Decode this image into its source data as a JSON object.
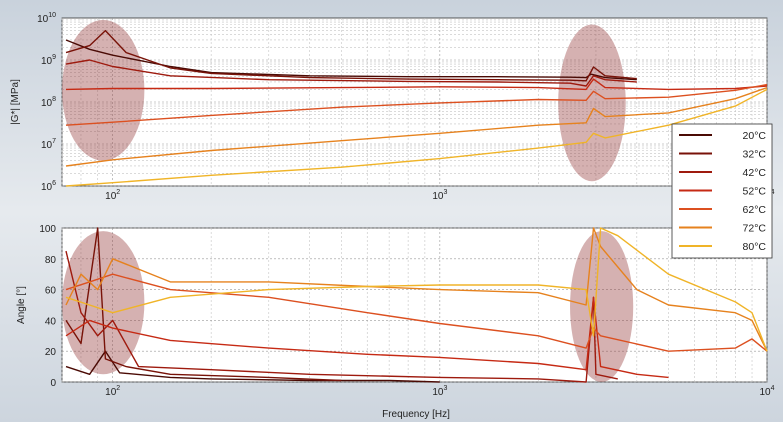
{
  "chart_data": [
    {
      "type": "line",
      "panel": "top",
      "ylabel": "|G*| [MPa]",
      "xlabel": "",
      "x_scale": "log",
      "y_scale": "log",
      "xlim": [
        70,
        10000
      ],
      "ylim": [
        1000000,
        10000000000
      ],
      "grid": true,
      "x_ticks": [
        {
          "value": 100,
          "base": "10",
          "exp": "2"
        },
        {
          "value": 1000,
          "base": "10",
          "exp": "3"
        },
        {
          "value": 10000,
          "base": "10",
          "exp": "4"
        }
      ],
      "y_ticks": [
        {
          "value": 1000000,
          "base": "10",
          "exp": "6"
        },
        {
          "value": 10000000,
          "base": "10",
          "exp": "7"
        },
        {
          "value": 100000000,
          "base": "10",
          "exp": "8"
        },
        {
          "value": 1000000000,
          "base": "10",
          "exp": "9"
        },
        {
          "value": 10000000000,
          "base": "10",
          "exp": "10"
        }
      ],
      "highlight_regions": [
        {
          "x_range": [
            70,
            125
          ],
          "y_range": [
            4000000,
            9000000000
          ]
        },
        {
          "x_range": [
            2300,
            3700
          ],
          "y_range": [
            1300000,
            7000000000
          ]
        }
      ],
      "series": [
        {
          "name": "20°C",
          "color": "#4a0a04",
          "points": [
            [
              72,
              3000000000
            ],
            [
              85,
              1800000000
            ],
            [
              100,
              1300000000
            ],
            [
              150,
              700000000
            ],
            [
              200,
              500000000
            ],
            [
              400,
              420000000
            ],
            [
              800,
              400000000
            ],
            [
              1500,
              400000000
            ],
            [
              2500,
              390000000
            ],
            [
              2800,
              380000000
            ],
            [
              2900,
              460000000
            ],
            [
              3200,
              380000000
            ],
            [
              4000,
              340000000
            ]
          ]
        },
        {
          "name": "32°C",
          "color": "#781208",
          "points": [
            [
              72,
              1500000000
            ],
            [
              85,
              2200000000
            ],
            [
              95,
              5000000000
            ],
            [
              110,
              1500000000
            ],
            [
              150,
              650000000
            ],
            [
              200,
              480000000
            ],
            [
              400,
              380000000
            ],
            [
              800,
              350000000
            ],
            [
              1500,
              340000000
            ],
            [
              2500,
              330000000
            ],
            [
              2800,
              320000000
            ],
            [
              2950,
              680000000
            ],
            [
              3200,
              420000000
            ],
            [
              4000,
              360000000
            ]
          ]
        },
        {
          "name": "42°C",
          "color": "#9e1a0e",
          "points": [
            [
              72,
              800000000
            ],
            [
              85,
              1000000000
            ],
            [
              100,
              700000000
            ],
            [
              150,
              420000000
            ],
            [
              300,
              340000000
            ],
            [
              800,
              310000000
            ],
            [
              1500,
              300000000
            ],
            [
              2500,
              280000000
            ],
            [
              2800,
              240000000
            ],
            [
              2950,
              420000000
            ],
            [
              3200,
              340000000
            ],
            [
              4000,
              300000000
            ]
          ]
        },
        {
          "name": "52°C",
          "color": "#c62a14",
          "points": [
            [
              72,
              200000000
            ],
            [
              100,
              210000000
            ],
            [
              200,
              210000000
            ],
            [
              500,
              220000000
            ],
            [
              1000,
              230000000
            ],
            [
              2000,
              220000000
            ],
            [
              2800,
              200000000
            ],
            [
              2950,
              350000000
            ],
            [
              3200,
              220000000
            ],
            [
              5000,
              200000000
            ],
            [
              8000,
              210000000
            ],
            [
              10000,
              240000000
            ]
          ]
        },
        {
          "name": "62°C",
          "color": "#dc5020",
          "points": [
            [
              72,
              28000000
            ],
            [
              100,
              33000000
            ],
            [
              200,
              48000000
            ],
            [
              500,
              75000000
            ],
            [
              1000,
              95000000
            ],
            [
              2000,
              115000000
            ],
            [
              2800,
              110000000
            ],
            [
              2950,
              180000000
            ],
            [
              3200,
              120000000
            ],
            [
              5000,
              130000000
            ],
            [
              8000,
              190000000
            ],
            [
              10000,
              260000000
            ]
          ]
        },
        {
          "name": "72°C",
          "color": "#e6821e",
          "points": [
            [
              72,
              3000000
            ],
            [
              100,
              4200000
            ],
            [
              200,
              7000000
            ],
            [
              500,
              12000000
            ],
            [
              1000,
              18000000
            ],
            [
              2000,
              28000000
            ],
            [
              2800,
              32000000
            ],
            [
              2950,
              70000000
            ],
            [
              3200,
              45000000
            ],
            [
              5000,
              55000000
            ],
            [
              8000,
              120000000
            ],
            [
              10000,
              220000000
            ]
          ]
        },
        {
          "name": "80°C",
          "color": "#f0b428",
          "points": [
            [
              72,
              1000000
            ],
            [
              100,
              1200000
            ],
            [
              200,
              1800000
            ],
            [
              500,
              2800000
            ],
            [
              1000,
              4500000
            ],
            [
              2000,
              8000000
            ],
            [
              2800,
              11000000
            ],
            [
              2950,
              18000000
            ],
            [
              3200,
              14000000
            ],
            [
              5000,
              28000000
            ],
            [
              8000,
              80000000
            ],
            [
              10000,
              200000000
            ]
          ]
        }
      ]
    },
    {
      "type": "line",
      "panel": "bottom",
      "ylabel": "Angle [°]",
      "xlabel": "Frequency [Hz]",
      "x_scale": "log",
      "y_scale": "linear",
      "xlim": [
        70,
        10000
      ],
      "ylim": [
        0,
        100
      ],
      "grid": true,
      "x_ticks": [
        {
          "value": 100,
          "base": "10",
          "exp": "2"
        },
        {
          "value": 1000,
          "base": "10",
          "exp": "3"
        },
        {
          "value": 10000,
          "base": "10",
          "exp": "4"
        }
      ],
      "y_ticks": [
        0,
        20,
        40,
        60,
        80,
        100
      ],
      "legend": {
        "position": "right",
        "entries": [
          "20°C",
          "32°C",
          "42°C",
          "52°C",
          "62°C",
          "72°C",
          "80°C"
        ]
      },
      "highlight_regions": [
        {
          "x_range": [
            70,
            125
          ],
          "y_range": [
            5,
            98
          ]
        },
        {
          "x_range": [
            2500,
            3900
          ],
          "y_range": [
            0,
            98
          ]
        }
      ],
      "series": [
        {
          "name": "20°C",
          "color": "#4a0a04",
          "points": [
            [
              72,
              10
            ],
            [
              85,
              5
            ],
            [
              95,
              20
            ],
            [
              105,
              6
            ],
            [
              150,
              3
            ],
            [
              200,
              2
            ],
            [
              400,
              1
            ],
            [
              700,
              1
            ],
            [
              1000,
              0
            ]
          ]
        },
        {
          "name": "32°C",
          "color": "#781208",
          "points": [
            [
              72,
              40
            ],
            [
              80,
              25
            ],
            [
              90,
              100
            ],
            [
              95,
              15
            ],
            [
              110,
              10
            ],
            [
              150,
              5
            ],
            [
              300,
              3
            ],
            [
              500,
              1
            ]
          ]
        },
        {
          "name": "42°C",
          "color": "#9e1a0e",
          "points": [
            [
              72,
              85
            ],
            [
              80,
              45
            ],
            [
              90,
              30
            ],
            [
              100,
              40
            ],
            [
              120,
              10
            ],
            [
              200,
              8
            ],
            [
              400,
              5
            ],
            [
              1000,
              3
            ],
            [
              2000,
              2
            ],
            [
              2800,
              0
            ],
            [
              2950,
              55
            ],
            [
              3000,
              5
            ],
            [
              3500,
              2
            ]
          ]
        },
        {
          "name": "52°C",
          "color": "#c62a14",
          "points": [
            [
              72,
              30
            ],
            [
              85,
              40
            ],
            [
              100,
              35
            ],
            [
              150,
              27
            ],
            [
              300,
              22
            ],
            [
              600,
              18
            ],
            [
              1000,
              16
            ],
            [
              2000,
              12
            ],
            [
              2800,
              8
            ],
            [
              2950,
              55
            ],
            [
              3100,
              10
            ],
            [
              4000,
              5
            ],
            [
              5000,
              3
            ]
          ]
        },
        {
          "name": "62°C",
          "color": "#dc5020",
          "points": [
            [
              72,
              60
            ],
            [
              85,
              65
            ],
            [
              100,
              70
            ],
            [
              150,
              60
            ],
            [
              300,
              55
            ],
            [
              600,
              45
            ],
            [
              1000,
              38
            ],
            [
              2000,
              30
            ],
            [
              2800,
              22
            ],
            [
              2950,
              35
            ],
            [
              3100,
              30
            ],
            [
              5000,
              20
            ],
            [
              8000,
              22
            ],
            [
              9000,
              28
            ],
            [
              10000,
              20
            ]
          ]
        },
        {
          "name": "72°C",
          "color": "#e6821e",
          "points": [
            [
              72,
              50
            ],
            [
              80,
              70
            ],
            [
              90,
              60
            ],
            [
              100,
              80
            ],
            [
              150,
              65
            ],
            [
              300,
              65
            ],
            [
              600,
              62
            ],
            [
              1000,
              60
            ],
            [
              2000,
              58
            ],
            [
              2800,
              50
            ],
            [
              2950,
              100
            ],
            [
              3100,
              88
            ],
            [
              4000,
              60
            ],
            [
              5000,
              50
            ],
            [
              8000,
              45
            ],
            [
              9000,
              40
            ],
            [
              10000,
              20
            ]
          ]
        },
        {
          "name": "80°C",
          "color": "#f0b428",
          "points": [
            [
              72,
              55
            ],
            [
              85,
              50
            ],
            [
              100,
              45
            ],
            [
              150,
              55
            ],
            [
              300,
              60
            ],
            [
              600,
              62
            ],
            [
              1000,
              63
            ],
            [
              2000,
              63
            ],
            [
              2800,
              60
            ],
            [
              2950,
              30
            ],
            [
              3100,
              100
            ],
            [
              3500,
              95
            ],
            [
              5000,
              70
            ],
            [
              8000,
              52
            ],
            [
              9000,
              45
            ],
            [
              10000,
              20
            ]
          ]
        }
      ]
    }
  ]
}
